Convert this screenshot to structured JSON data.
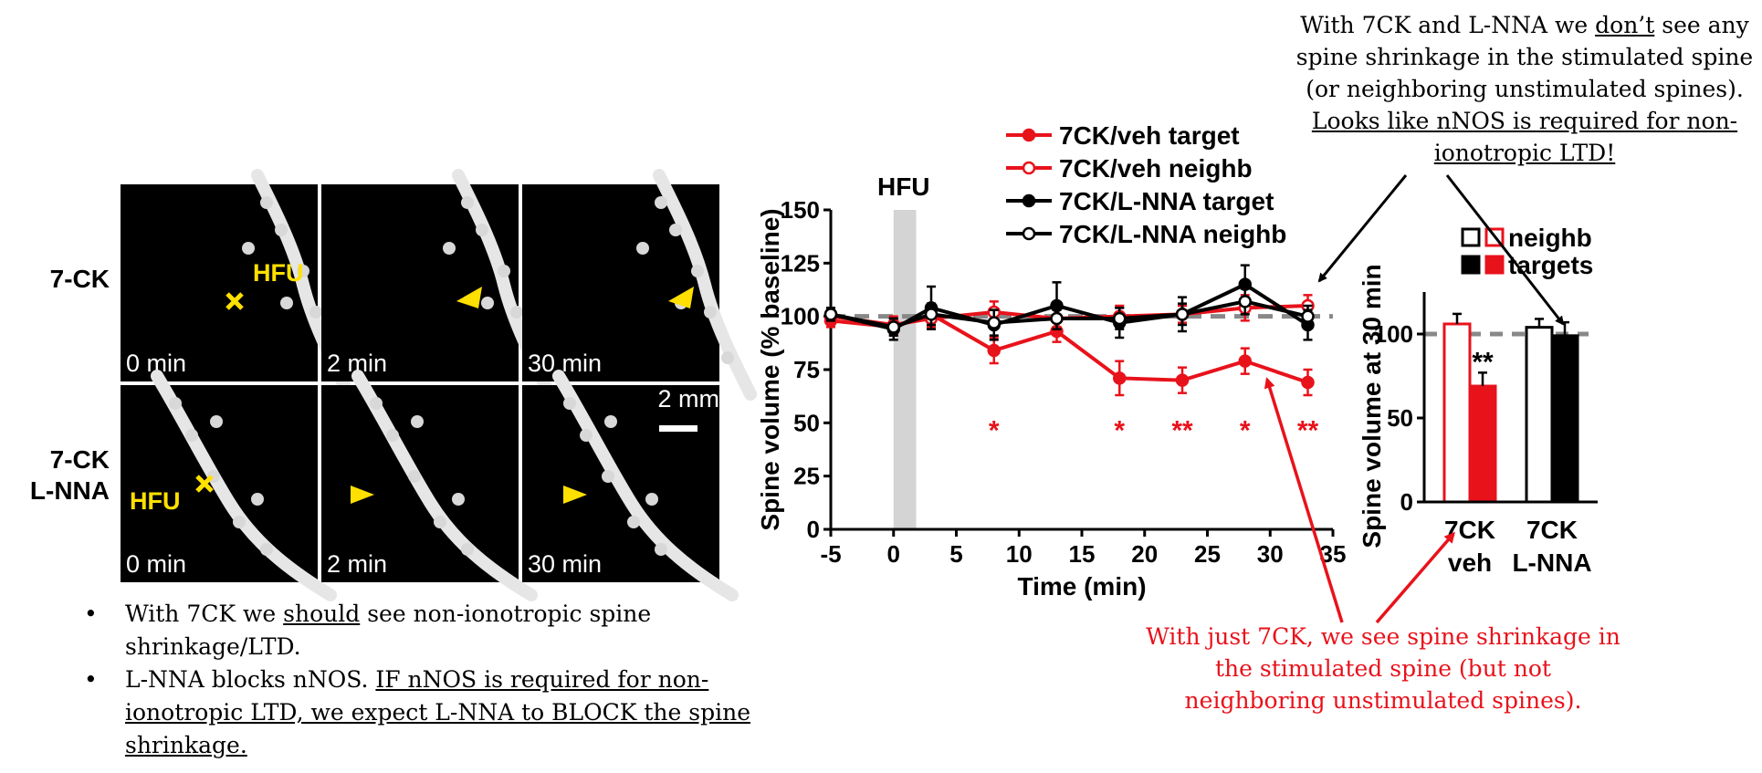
{
  "callouts": {
    "top": {
      "p1": "With 7CK and L-NNA we ",
      "u1": "don’t",
      "p2": " see any spine shrinkage in the stimulated spine (or neighboring unstimulated spines). ",
      "u2": "Looks like nNOS is required for non-ionotropic LTD!"
    },
    "red": "With just 7CK, we see spine shrinkage in the stimulated spine (but not neighboring unstimulated spines)."
  },
  "bullets": {
    "b1": {
      "p1": "With 7CK we ",
      "u1": "should",
      "p2": " see non-ionotropic spine shrinkage/LTD."
    },
    "b2": {
      "p1": "L-NNA blocks nNOS. ",
      "u1": "IF nNOS is required for non-ionotropic LTD, we expect L-NNA to BLOCK the spine shrinkage."
    },
    "marker": "•"
  },
  "images": {
    "row_labels": [
      "7-CK",
      "7-CK\nL-NNA"
    ],
    "time_labels": [
      "0 min",
      "2 min",
      "30 min"
    ],
    "hfu_label": "HFU",
    "scale_bar": "2 mm",
    "colors": {
      "marker": "#ffe000"
    }
  },
  "chart_data": [
    {
      "type": "line",
      "title": "",
      "xlabel": "Time (min)",
      "ylabel": "Spine volume (% baseline)",
      "xlim": [
        -5,
        35
      ],
      "ylim": [
        0,
        150
      ],
      "xticks": [
        -5,
        0,
        5,
        10,
        15,
        20,
        25,
        30,
        35
      ],
      "yticks": [
        0,
        25,
        50,
        75,
        100,
        125,
        150
      ],
      "baseline": 100,
      "stim_band": {
        "label": "HFU",
        "x": [
          0,
          1.8
        ]
      },
      "legend": "top",
      "series": [
        {
          "name": "7CK/veh target",
          "color": "#e8121b",
          "filled": true,
          "x": [
            -5,
            0,
            3,
            8,
            13,
            18,
            23,
            28,
            33
          ],
          "y": [
            98,
            95,
            101,
            84,
            93,
            71,
            70,
            79,
            69
          ],
          "err": [
            3,
            4,
            5,
            6,
            5,
            8,
            6,
            6,
            6
          ]
        },
        {
          "name": "7CK/veh neighb",
          "color": "#e8121b",
          "filled": false,
          "x": [
            -5,
            0,
            3,
            8,
            13,
            18,
            23,
            28,
            33
          ],
          "y": [
            100,
            96,
            99,
            102,
            99,
            100,
            101,
            104,
            105
          ],
          "err": [
            3,
            4,
            4,
            5,
            4,
            5,
            4,
            6,
            5
          ]
        },
        {
          "name": "7CK/L-NNA target",
          "color": "#000000",
          "filled": true,
          "x": [
            -5,
            0,
            3,
            8,
            13,
            18,
            23,
            28,
            33
          ],
          "y": [
            101,
            94,
            104,
            96,
            105,
            97,
            101,
            115,
            96
          ],
          "err": [
            3,
            5,
            10,
            7,
            11,
            7,
            8,
            9,
            7
          ]
        },
        {
          "name": "7CK/L-NNA neighb",
          "color": "#000000",
          "filled": false,
          "x": [
            -5,
            0,
            3,
            8,
            13,
            18,
            23,
            28,
            33
          ],
          "y": [
            101,
            95,
            101,
            97,
            99,
            99,
            101,
            107,
            100
          ],
          "err": [
            3,
            4,
            5,
            6,
            5,
            5,
            5,
            6,
            5
          ]
        }
      ],
      "significance": [
        {
          "x": 8,
          "label": "*"
        },
        {
          "x": 18,
          "label": "*"
        },
        {
          "x": 23,
          "label": "**"
        },
        {
          "x": 28,
          "label": "*"
        },
        {
          "x": 33,
          "label": "**"
        }
      ]
    },
    {
      "type": "bar",
      "title": "",
      "ylabel": "Spine volume at 30 min",
      "ylim": [
        0,
        125
      ],
      "yticks": [
        0,
        50,
        100
      ],
      "categories": [
        "7CK\nveh",
        "7CK\nL-NNA"
      ],
      "baseline": 100,
      "legend": "top",
      "legend_entries": [
        "neighb",
        "targets"
      ],
      "series": [
        {
          "name": "neighb",
          "values": [
            106,
            104
          ],
          "err": [
            6,
            5
          ],
          "colors": [
            "#e8121b",
            "#000000"
          ],
          "filled": false
        },
        {
          "name": "targets",
          "values": [
            69,
            99
          ],
          "err": [
            8,
            8
          ],
          "colors": [
            "#e8121b",
            "#000000"
          ],
          "filled": true
        }
      ],
      "significance": [
        {
          "category": 0,
          "label": "**"
        }
      ]
    }
  ]
}
